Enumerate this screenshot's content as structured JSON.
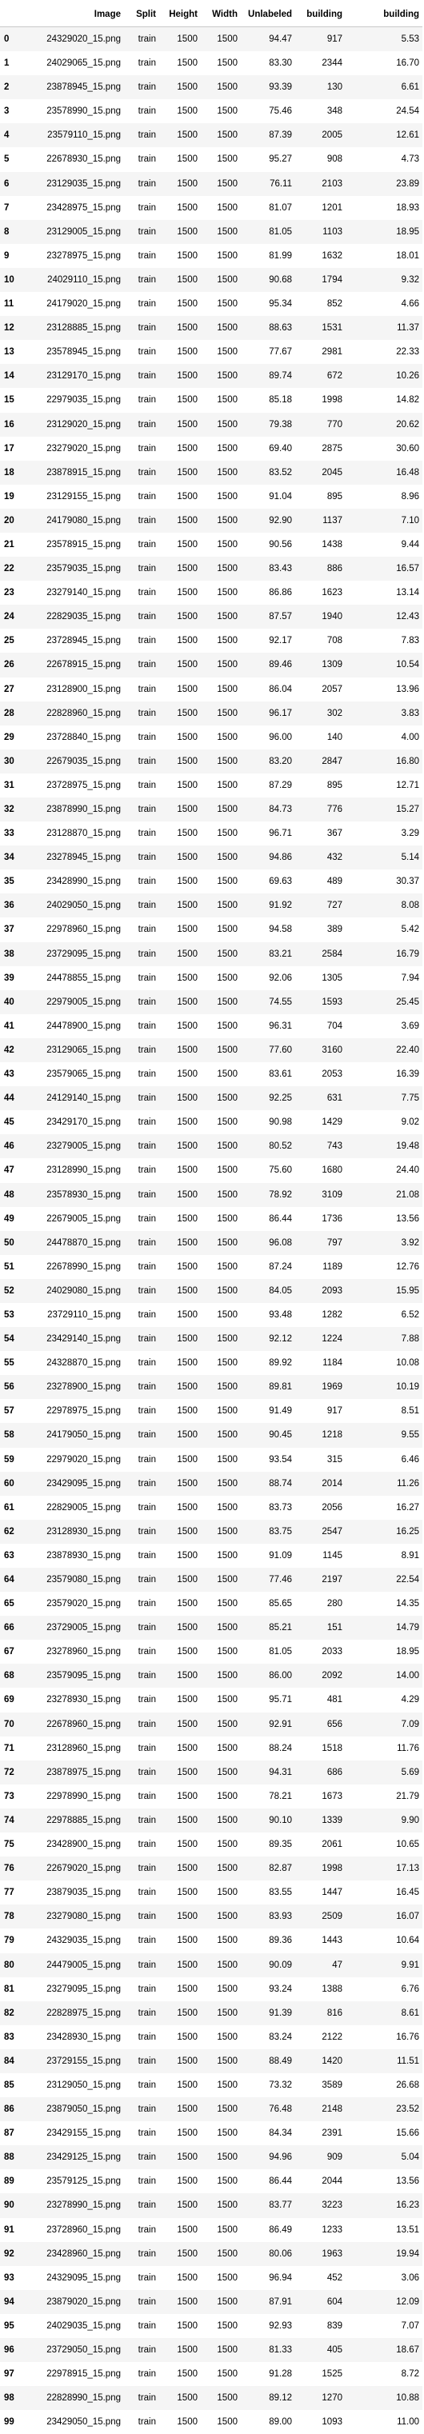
{
  "columns": [
    "",
    "Image",
    "Split",
    "Height",
    "Width",
    "Unlabeled",
    "building",
    "building"
  ],
  "rows": [
    [
      "0",
      "24329020_15.png",
      "train",
      "1500",
      "1500",
      "94.47",
      "917",
      "5.53"
    ],
    [
      "1",
      "24029065_15.png",
      "train",
      "1500",
      "1500",
      "83.30",
      "2344",
      "16.70"
    ],
    [
      "2",
      "23878945_15.png",
      "train",
      "1500",
      "1500",
      "93.39",
      "130",
      "6.61"
    ],
    [
      "3",
      "23578990_15.png",
      "train",
      "1500",
      "1500",
      "75.46",
      "348",
      "24.54"
    ],
    [
      "4",
      "23579110_15.png",
      "train",
      "1500",
      "1500",
      "87.39",
      "2005",
      "12.61"
    ],
    [
      "5",
      "22678930_15.png",
      "train",
      "1500",
      "1500",
      "95.27",
      "908",
      "4.73"
    ],
    [
      "6",
      "23129035_15.png",
      "train",
      "1500",
      "1500",
      "76.11",
      "2103",
      "23.89"
    ],
    [
      "7",
      "23428975_15.png",
      "train",
      "1500",
      "1500",
      "81.07",
      "1201",
      "18.93"
    ],
    [
      "8",
      "23129005_15.png",
      "train",
      "1500",
      "1500",
      "81.05",
      "1103",
      "18.95"
    ],
    [
      "9",
      "23278975_15.png",
      "train",
      "1500",
      "1500",
      "81.99",
      "1632",
      "18.01"
    ],
    [
      "10",
      "24029110_15.png",
      "train",
      "1500",
      "1500",
      "90.68",
      "1794",
      "9.32"
    ],
    [
      "11",
      "24179020_15.png",
      "train",
      "1500",
      "1500",
      "95.34",
      "852",
      "4.66"
    ],
    [
      "12",
      "23128885_15.png",
      "train",
      "1500",
      "1500",
      "88.63",
      "1531",
      "11.37"
    ],
    [
      "13",
      "23578945_15.png",
      "train",
      "1500",
      "1500",
      "77.67",
      "2981",
      "22.33"
    ],
    [
      "14",
      "23129170_15.png",
      "train",
      "1500",
      "1500",
      "89.74",
      "672",
      "10.26"
    ],
    [
      "15",
      "22979035_15.png",
      "train",
      "1500",
      "1500",
      "85.18",
      "1998",
      "14.82"
    ],
    [
      "16",
      "23129020_15.png",
      "train",
      "1500",
      "1500",
      "79.38",
      "770",
      "20.62"
    ],
    [
      "17",
      "23279020_15.png",
      "train",
      "1500",
      "1500",
      "69.40",
      "2875",
      "30.60"
    ],
    [
      "18",
      "23878915_15.png",
      "train",
      "1500",
      "1500",
      "83.52",
      "2045",
      "16.48"
    ],
    [
      "19",
      "23129155_15.png",
      "train",
      "1500",
      "1500",
      "91.04",
      "895",
      "8.96"
    ],
    [
      "20",
      "24179080_15.png",
      "train",
      "1500",
      "1500",
      "92.90",
      "1137",
      "7.10"
    ],
    [
      "21",
      "23578915_15.png",
      "train",
      "1500",
      "1500",
      "90.56",
      "1438",
      "9.44"
    ],
    [
      "22",
      "23579035_15.png",
      "train",
      "1500",
      "1500",
      "83.43",
      "886",
      "16.57"
    ],
    [
      "23",
      "23279140_15.png",
      "train",
      "1500",
      "1500",
      "86.86",
      "1623",
      "13.14"
    ],
    [
      "24",
      "22829035_15.png",
      "train",
      "1500",
      "1500",
      "87.57",
      "1940",
      "12.43"
    ],
    [
      "25",
      "23728945_15.png",
      "train",
      "1500",
      "1500",
      "92.17",
      "708",
      "7.83"
    ],
    [
      "26",
      "22678915_15.png",
      "train",
      "1500",
      "1500",
      "89.46",
      "1309",
      "10.54"
    ],
    [
      "27",
      "23128900_15.png",
      "train",
      "1500",
      "1500",
      "86.04",
      "2057",
      "13.96"
    ],
    [
      "28",
      "22828960_15.png",
      "train",
      "1500",
      "1500",
      "96.17",
      "302",
      "3.83"
    ],
    [
      "29",
      "23728840_15.png",
      "train",
      "1500",
      "1500",
      "96.00",
      "140",
      "4.00"
    ],
    [
      "30",
      "22679035_15.png",
      "train",
      "1500",
      "1500",
      "83.20",
      "2847",
      "16.80"
    ],
    [
      "31",
      "23728975_15.png",
      "train",
      "1500",
      "1500",
      "87.29",
      "895",
      "12.71"
    ],
    [
      "32",
      "23878990_15.png",
      "train",
      "1500",
      "1500",
      "84.73",
      "776",
      "15.27"
    ],
    [
      "33",
      "23128870_15.png",
      "train",
      "1500",
      "1500",
      "96.71",
      "367",
      "3.29"
    ],
    [
      "34",
      "23278945_15.png",
      "train",
      "1500",
      "1500",
      "94.86",
      "432",
      "5.14"
    ],
    [
      "35",
      "23428990_15.png",
      "train",
      "1500",
      "1500",
      "69.63",
      "489",
      "30.37"
    ],
    [
      "36",
      "24029050_15.png",
      "train",
      "1500",
      "1500",
      "91.92",
      "727",
      "8.08"
    ],
    [
      "37",
      "22978960_15.png",
      "train",
      "1500",
      "1500",
      "94.58",
      "389",
      "5.42"
    ],
    [
      "38",
      "23729095_15.png",
      "train",
      "1500",
      "1500",
      "83.21",
      "2584",
      "16.79"
    ],
    [
      "39",
      "24478855_15.png",
      "train",
      "1500",
      "1500",
      "92.06",
      "1305",
      "7.94"
    ],
    [
      "40",
      "22979005_15.png",
      "train",
      "1500",
      "1500",
      "74.55",
      "1593",
      "25.45"
    ],
    [
      "41",
      "24478900_15.png",
      "train",
      "1500",
      "1500",
      "96.31",
      "704",
      "3.69"
    ],
    [
      "42",
      "23129065_15.png",
      "train",
      "1500",
      "1500",
      "77.60",
      "3160",
      "22.40"
    ],
    [
      "43",
      "23579065_15.png",
      "train",
      "1500",
      "1500",
      "83.61",
      "2053",
      "16.39"
    ],
    [
      "44",
      "24129140_15.png",
      "train",
      "1500",
      "1500",
      "92.25",
      "631",
      "7.75"
    ],
    [
      "45",
      "23429170_15.png",
      "train",
      "1500",
      "1500",
      "90.98",
      "1429",
      "9.02"
    ],
    [
      "46",
      "23279005_15.png",
      "train",
      "1500",
      "1500",
      "80.52",
      "743",
      "19.48"
    ],
    [
      "47",
      "23128990_15.png",
      "train",
      "1500",
      "1500",
      "75.60",
      "1680",
      "24.40"
    ],
    [
      "48",
      "23578930_15.png",
      "train",
      "1500",
      "1500",
      "78.92",
      "3109",
      "21.08"
    ],
    [
      "49",
      "22679005_15.png",
      "train",
      "1500",
      "1500",
      "86.44",
      "1736",
      "13.56"
    ],
    [
      "50",
      "24478870_15.png",
      "train",
      "1500",
      "1500",
      "96.08",
      "797",
      "3.92"
    ],
    [
      "51",
      "22678990_15.png",
      "train",
      "1500",
      "1500",
      "87.24",
      "1189",
      "12.76"
    ],
    [
      "52",
      "24029080_15.png",
      "train",
      "1500",
      "1500",
      "84.05",
      "2093",
      "15.95"
    ],
    [
      "53",
      "23729110_15.png",
      "train",
      "1500",
      "1500",
      "93.48",
      "1282",
      "6.52"
    ],
    [
      "54",
      "23429140_15.png",
      "train",
      "1500",
      "1500",
      "92.12",
      "1224",
      "7.88"
    ],
    [
      "55",
      "24328870_15.png",
      "train",
      "1500",
      "1500",
      "89.92",
      "1184",
      "10.08"
    ],
    [
      "56",
      "23278900_15.png",
      "train",
      "1500",
      "1500",
      "89.81",
      "1969",
      "10.19"
    ],
    [
      "57",
      "22978975_15.png",
      "train",
      "1500",
      "1500",
      "91.49",
      "917",
      "8.51"
    ],
    [
      "58",
      "24179050_15.png",
      "train",
      "1500",
      "1500",
      "90.45",
      "1218",
      "9.55"
    ],
    [
      "59",
      "22979020_15.png",
      "train",
      "1500",
      "1500",
      "93.54",
      "315",
      "6.46"
    ],
    [
      "60",
      "23429095_15.png",
      "train",
      "1500",
      "1500",
      "88.74",
      "2014",
      "11.26"
    ],
    [
      "61",
      "22829005_15.png",
      "train",
      "1500",
      "1500",
      "83.73",
      "2056",
      "16.27"
    ],
    [
      "62",
      "23128930_15.png",
      "train",
      "1500",
      "1500",
      "83.75",
      "2547",
      "16.25"
    ],
    [
      "63",
      "23878930_15.png",
      "train",
      "1500",
      "1500",
      "91.09",
      "1145",
      "8.91"
    ],
    [
      "64",
      "23579080_15.png",
      "train",
      "1500",
      "1500",
      "77.46",
      "2197",
      "22.54"
    ],
    [
      "65",
      "23579020_15.png",
      "train",
      "1500",
      "1500",
      "85.65",
      "280",
      "14.35"
    ],
    [
      "66",
      "23729005_15.png",
      "train",
      "1500",
      "1500",
      "85.21",
      "151",
      "14.79"
    ],
    [
      "67",
      "23278960_15.png",
      "train",
      "1500",
      "1500",
      "81.05",
      "2033",
      "18.95"
    ],
    [
      "68",
      "23579095_15.png",
      "train",
      "1500",
      "1500",
      "86.00",
      "2092",
      "14.00"
    ],
    [
      "69",
      "23278930_15.png",
      "train",
      "1500",
      "1500",
      "95.71",
      "481",
      "4.29"
    ],
    [
      "70",
      "22678960_15.png",
      "train",
      "1500",
      "1500",
      "92.91",
      "656",
      "7.09"
    ],
    [
      "71",
      "23128960_15.png",
      "train",
      "1500",
      "1500",
      "88.24",
      "1518",
      "11.76"
    ],
    [
      "72",
      "23878975_15.png",
      "train",
      "1500",
      "1500",
      "94.31",
      "686",
      "5.69"
    ],
    [
      "73",
      "22978990_15.png",
      "train",
      "1500",
      "1500",
      "78.21",
      "1673",
      "21.79"
    ],
    [
      "74",
      "22978885_15.png",
      "train",
      "1500",
      "1500",
      "90.10",
      "1339",
      "9.90"
    ],
    [
      "75",
      "23428900_15.png",
      "train",
      "1500",
      "1500",
      "89.35",
      "2061",
      "10.65"
    ],
    [
      "76",
      "22679020_15.png",
      "train",
      "1500",
      "1500",
      "82.87",
      "1998",
      "17.13"
    ],
    [
      "77",
      "23879035_15.png",
      "train",
      "1500",
      "1500",
      "83.55",
      "1447",
      "16.45"
    ],
    [
      "78",
      "23279080_15.png",
      "train",
      "1500",
      "1500",
      "83.93",
      "2509",
      "16.07"
    ],
    [
      "79",
      "24329035_15.png",
      "train",
      "1500",
      "1500",
      "89.36",
      "1443",
      "10.64"
    ],
    [
      "80",
      "24479005_15.png",
      "train",
      "1500",
      "1500",
      "90.09",
      "47",
      "9.91"
    ],
    [
      "81",
      "23279095_15.png",
      "train",
      "1500",
      "1500",
      "93.24",
      "1388",
      "6.76"
    ],
    [
      "82",
      "22828975_15.png",
      "train",
      "1500",
      "1500",
      "91.39",
      "816",
      "8.61"
    ],
    [
      "83",
      "23428930_15.png",
      "train",
      "1500",
      "1500",
      "83.24",
      "2122",
      "16.76"
    ],
    [
      "84",
      "23729155_15.png",
      "train",
      "1500",
      "1500",
      "88.49",
      "1420",
      "11.51"
    ],
    [
      "85",
      "23129050_15.png",
      "train",
      "1500",
      "1500",
      "73.32",
      "3589",
      "26.68"
    ],
    [
      "86",
      "23879050_15.png",
      "train",
      "1500",
      "1500",
      "76.48",
      "2148",
      "23.52"
    ],
    [
      "87",
      "23429155_15.png",
      "train",
      "1500",
      "1500",
      "84.34",
      "2391",
      "15.66"
    ],
    [
      "88",
      "23429125_15.png",
      "train",
      "1500",
      "1500",
      "94.96",
      "909",
      "5.04"
    ],
    [
      "89",
      "23579125_15.png",
      "train",
      "1500",
      "1500",
      "86.44",
      "2044",
      "13.56"
    ],
    [
      "90",
      "23278990_15.png",
      "train",
      "1500",
      "1500",
      "83.77",
      "3223",
      "16.23"
    ],
    [
      "91",
      "23728960_15.png",
      "train",
      "1500",
      "1500",
      "86.49",
      "1233",
      "13.51"
    ],
    [
      "92",
      "23428960_15.png",
      "train",
      "1500",
      "1500",
      "80.06",
      "1963",
      "19.94"
    ],
    [
      "93",
      "24329095_15.png",
      "train",
      "1500",
      "1500",
      "96.94",
      "452",
      "3.06"
    ],
    [
      "94",
      "23879020_15.png",
      "train",
      "1500",
      "1500",
      "87.91",
      "604",
      "12.09"
    ],
    [
      "95",
      "24029035_15.png",
      "train",
      "1500",
      "1500",
      "92.93",
      "839",
      "7.07"
    ],
    [
      "96",
      "23729050_15.png",
      "train",
      "1500",
      "1500",
      "81.33",
      "405",
      "18.67"
    ],
    [
      "97",
      "22978915_15.png",
      "train",
      "1500",
      "1500",
      "91.28",
      "1525",
      "8.72"
    ],
    [
      "98",
      "22828990_15.png",
      "train",
      "1500",
      "1500",
      "89.12",
      "1270",
      "10.88"
    ],
    [
      "99",
      "23429050_15.png",
      "train",
      "1500",
      "1500",
      "89.00",
      "1093",
      "11.00"
    ]
  ]
}
